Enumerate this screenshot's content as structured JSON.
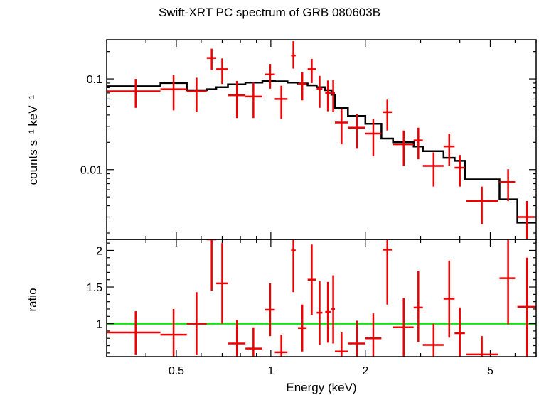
{
  "chart_data": [
    {
      "type": "scatter",
      "panel": "spectrum",
      "title": "Swift-XRT PC spectrum of GRB 080603B",
      "ylabel": "counts s⁻¹ keV⁻¹",
      "xscale": "log",
      "yscale": "log",
      "xlim": [
        0.3,
        7.0
      ],
      "ylim": [
        0.0017,
        0.27
      ],
      "yticks": [
        {
          "v": 0.1,
          "label": "0.1"
        },
        {
          "v": 0.01,
          "label": "0.01"
        }
      ],
      "data_color": "#ee0000",
      "model_color": "#000000",
      "data": [
        {
          "x": 0.371,
          "xlo": 0.3,
          "xhi": 0.445,
          "y": 0.073,
          "ylo": 0.048,
          "yhi": 0.1
        },
        {
          "x": 0.49,
          "xlo": 0.445,
          "xhi": 0.54,
          "y": 0.077,
          "ylo": 0.045,
          "yhi": 0.11
        },
        {
          "x": 0.58,
          "xlo": 0.54,
          "xhi": 0.625,
          "y": 0.073,
          "ylo": 0.043,
          "yhi": 0.103
        },
        {
          "x": 0.648,
          "xlo": 0.625,
          "xhi": 0.67,
          "y": 0.17,
          "ylo": 0.125,
          "yhi": 0.215
        },
        {
          "x": 0.7,
          "xlo": 0.67,
          "xhi": 0.73,
          "y": 0.128,
          "ylo": 0.088,
          "yhi": 0.168
        },
        {
          "x": 0.78,
          "xlo": 0.73,
          "xhi": 0.83,
          "y": 0.066,
          "ylo": 0.037,
          "yhi": 0.095
        },
        {
          "x": 0.88,
          "xlo": 0.83,
          "xhi": 0.94,
          "y": 0.064,
          "ylo": 0.037,
          "yhi": 0.091
        },
        {
          "x": 0.995,
          "xlo": 0.96,
          "xhi": 1.03,
          "y": 0.112,
          "ylo": 0.078,
          "yhi": 0.146
        },
        {
          "x": 1.08,
          "xlo": 1.03,
          "xhi": 1.13,
          "y": 0.06,
          "ylo": 0.036,
          "yhi": 0.084
        },
        {
          "x": 1.18,
          "xlo": 1.16,
          "xhi": 1.2,
          "y": 0.181,
          "ylo": 0.13,
          "yhi": 0.26
        },
        {
          "x": 1.26,
          "xlo": 1.22,
          "xhi": 1.3,
          "y": 0.088,
          "ylo": 0.058,
          "yhi": 0.118
        },
        {
          "x": 1.35,
          "xlo": 1.31,
          "xhi": 1.39,
          "y": 0.128,
          "ylo": 0.09,
          "yhi": 0.166
        },
        {
          "x": 1.43,
          "xlo": 1.4,
          "xhi": 1.46,
          "y": 0.078,
          "ylo": 0.048,
          "yhi": 0.108
        },
        {
          "x": 1.52,
          "xlo": 1.49,
          "xhi": 1.55,
          "y": 0.07,
          "ylo": 0.044,
          "yhi": 0.096
        },
        {
          "x": 1.58,
          "xlo": 1.56,
          "xhi": 1.6,
          "y": 0.07,
          "ylo": 0.043,
          "yhi": 0.097
        },
        {
          "x": 1.68,
          "xlo": 1.6,
          "xhi": 1.76,
          "y": 0.033,
          "ylo": 0.019,
          "yhi": 0.047
        },
        {
          "x": 1.88,
          "xlo": 1.76,
          "xhi": 2.0,
          "y": 0.029,
          "ylo": 0.017,
          "yhi": 0.041
        },
        {
          "x": 2.12,
          "xlo": 2.0,
          "xhi": 2.25,
          "y": 0.025,
          "ylo": 0.014,
          "yhi": 0.036
        },
        {
          "x": 2.35,
          "xlo": 2.27,
          "xhi": 2.43,
          "y": 0.043,
          "ylo": 0.027,
          "yhi": 0.059
        },
        {
          "x": 2.65,
          "xlo": 2.45,
          "xhi": 2.85,
          "y": 0.019,
          "ylo": 0.011,
          "yhi": 0.027
        },
        {
          "x": 2.95,
          "xlo": 2.85,
          "xhi": 3.05,
          "y": 0.021,
          "ylo": 0.013,
          "yhi": 0.029
        },
        {
          "x": 3.3,
          "xlo": 3.05,
          "xhi": 3.55,
          "y": 0.011,
          "ylo": 0.0065,
          "yhi": 0.0155
        },
        {
          "x": 3.7,
          "xlo": 3.55,
          "xhi": 3.85,
          "y": 0.018,
          "ylo": 0.011,
          "yhi": 0.025
        },
        {
          "x": 4.0,
          "xlo": 3.85,
          "xhi": 4.15,
          "y": 0.0105,
          "ylo": 0.0065,
          "yhi": 0.0145
        },
        {
          "x": 4.7,
          "xlo": 4.2,
          "xhi": 5.3,
          "y": 0.0045,
          "ylo": 0.0025,
          "yhi": 0.0065
        },
        {
          "x": 5.7,
          "xlo": 5.35,
          "xhi": 6.0,
          "y": 0.0073,
          "ylo": 0.0045,
          "yhi": 0.0101
        },
        {
          "x": 6.55,
          "xlo": 6.1,
          "xhi": 7.0,
          "y": 0.003,
          "ylo": 0.0017,
          "yhi": 0.0045
        }
      ],
      "model": [
        {
          "x0": 0.3,
          "x1": 0.445,
          "y": 0.083
        },
        {
          "x0": 0.445,
          "x1": 0.54,
          "y": 0.09
        },
        {
          "x0": 0.54,
          "x1": 0.625,
          "y": 0.075
        },
        {
          "x0": 0.625,
          "x1": 0.67,
          "y": 0.077
        },
        {
          "x0": 0.67,
          "x1": 0.73,
          "y": 0.081
        },
        {
          "x0": 0.73,
          "x1": 0.83,
          "y": 0.087
        },
        {
          "x0": 0.83,
          "x1": 0.94,
          "y": 0.091
        },
        {
          "x0": 0.94,
          "x1": 1.03,
          "y": 0.095
        },
        {
          "x0": 1.03,
          "x1": 1.13,
          "y": 0.094
        },
        {
          "x0": 1.13,
          "x1": 1.22,
          "y": 0.091
        },
        {
          "x0": 1.22,
          "x1": 1.31,
          "y": 0.089
        },
        {
          "x0": 1.31,
          "x1": 1.4,
          "y": 0.085
        },
        {
          "x0": 1.4,
          "x1": 1.49,
          "y": 0.081
        },
        {
          "x0": 1.49,
          "x1": 1.56,
          "y": 0.075
        },
        {
          "x0": 1.56,
          "x1": 1.6,
          "y": 0.067
        },
        {
          "x0": 1.6,
          "x1": 1.76,
          "y": 0.048
        },
        {
          "x0": 1.76,
          "x1": 2.0,
          "y": 0.039
        },
        {
          "x0": 2.0,
          "x1": 2.25,
          "y": 0.032
        },
        {
          "x0": 2.25,
          "x1": 2.45,
          "y": 0.022
        },
        {
          "x0": 2.45,
          "x1": 2.85,
          "y": 0.02
        },
        {
          "x0": 2.85,
          "x1": 3.05,
          "y": 0.018
        },
        {
          "x0": 3.05,
          "x1": 3.55,
          "y": 0.016
        },
        {
          "x0": 3.55,
          "x1": 3.85,
          "y": 0.0135
        },
        {
          "x0": 3.85,
          "x1": 4.15,
          "y": 0.0125
        },
        {
          "x0": 4.15,
          "x1": 5.35,
          "y": 0.0078
        },
        {
          "x0": 5.35,
          "x1": 6.1,
          "y": 0.0047
        },
        {
          "x0": 6.1,
          "x1": 7.0,
          "y": 0.0026
        }
      ]
    },
    {
      "type": "scatter",
      "panel": "ratio",
      "xlabel": "Energy (keV)",
      "ylabel": "ratio",
      "xscale": "log",
      "yscale": "linear",
      "xlim": [
        0.3,
        7.0
      ],
      "ylim": [
        0.55,
        2.15
      ],
      "xticks": [
        {
          "v": 0.5,
          "label": "0.5"
        },
        {
          "v": 1,
          "label": "1"
        },
        {
          "v": 2,
          "label": "2"
        },
        {
          "v": 5,
          "label": "5"
        }
      ],
      "yticks": [
        {
          "v": 1,
          "label": "1"
        },
        {
          "v": 1.5,
          "label": "1.5"
        },
        {
          "v": 2,
          "label": "2"
        }
      ],
      "reference_line": {
        "y": 1.0,
        "color": "#00ee00"
      },
      "data_color": "#ee0000",
      "data": [
        {
          "x": 0.371,
          "xlo": 0.3,
          "xhi": 0.445,
          "y": 0.88,
          "ylo": 0.58,
          "yhi": 1.17
        },
        {
          "x": 0.49,
          "xlo": 0.445,
          "xhi": 0.54,
          "y": 0.85,
          "ylo": 0.5,
          "yhi": 1.2
        },
        {
          "x": 0.58,
          "xlo": 0.54,
          "xhi": 0.625,
          "y": 1.0,
          "ylo": 0.57,
          "yhi": 1.43
        },
        {
          "x": 0.648,
          "xlo": 0.625,
          "xhi": 0.67,
          "y": 2.15,
          "ylo": 1.45,
          "yhi": 2.85
        },
        {
          "x": 0.7,
          "xlo": 0.67,
          "xhi": 0.73,
          "y": 1.55,
          "ylo": 1.0,
          "yhi": 2.1
        },
        {
          "x": 0.78,
          "xlo": 0.73,
          "xhi": 0.83,
          "y": 0.73,
          "ylo": 0.42,
          "yhi": 1.05
        },
        {
          "x": 0.88,
          "xlo": 0.83,
          "xhi": 0.94,
          "y": 0.66,
          "ylo": 0.38,
          "yhi": 0.95
        },
        {
          "x": 0.995,
          "xlo": 0.96,
          "xhi": 1.03,
          "y": 1.19,
          "ylo": 0.83,
          "yhi": 1.55
        },
        {
          "x": 1.08,
          "xlo": 1.03,
          "xhi": 1.13,
          "y": 0.61,
          "ylo": 0.37,
          "yhi": 0.85
        },
        {
          "x": 1.18,
          "xlo": 1.16,
          "xhi": 1.2,
          "y": 2.0,
          "ylo": 1.43,
          "yhi": 2.9
        },
        {
          "x": 1.26,
          "xlo": 1.22,
          "xhi": 1.3,
          "y": 0.94,
          "ylo": 0.62,
          "yhi": 1.26
        },
        {
          "x": 1.35,
          "xlo": 1.31,
          "xhi": 1.39,
          "y": 1.6,
          "ylo": 1.12,
          "yhi": 2.08
        },
        {
          "x": 1.43,
          "xlo": 1.4,
          "xhi": 1.46,
          "y": 1.15,
          "ylo": 0.71,
          "yhi": 1.58
        },
        {
          "x": 1.52,
          "xlo": 1.49,
          "xhi": 1.55,
          "y": 1.16,
          "ylo": 0.74,
          "yhi": 1.57
        },
        {
          "x": 1.58,
          "xlo": 1.56,
          "xhi": 1.6,
          "y": 1.2,
          "ylo": 0.73,
          "yhi": 1.66
        },
        {
          "x": 1.68,
          "xlo": 1.6,
          "xhi": 1.76,
          "y": 0.62,
          "ylo": 0.36,
          "yhi": 0.88
        },
        {
          "x": 1.88,
          "xlo": 1.76,
          "xhi": 2.0,
          "y": 0.73,
          "ylo": 0.43,
          "yhi": 1.04
        },
        {
          "x": 2.12,
          "xlo": 2.0,
          "xhi": 2.25,
          "y": 0.8,
          "ylo": 0.45,
          "yhi": 1.14
        },
        {
          "x": 2.35,
          "xlo": 2.27,
          "xhi": 2.43,
          "y": 2.01,
          "ylo": 1.26,
          "yhi": 2.75
        },
        {
          "x": 2.65,
          "xlo": 2.45,
          "xhi": 2.85,
          "y": 0.95,
          "ylo": 0.55,
          "yhi": 1.35
        },
        {
          "x": 2.95,
          "xlo": 2.85,
          "xhi": 3.05,
          "y": 1.22,
          "ylo": 0.75,
          "yhi": 1.72
        },
        {
          "x": 3.3,
          "xlo": 3.05,
          "xhi": 3.55,
          "y": 0.71,
          "ylo": 0.42,
          "yhi": 1.0
        },
        {
          "x": 3.7,
          "xlo": 3.55,
          "xhi": 3.85,
          "y": 1.34,
          "ylo": 0.81,
          "yhi": 1.86
        },
        {
          "x": 4.0,
          "xlo": 3.85,
          "xhi": 4.15,
          "y": 0.87,
          "ylo": 0.52,
          "yhi": 1.22
        },
        {
          "x": 4.7,
          "xlo": 4.2,
          "xhi": 5.3,
          "y": 0.58,
          "ylo": 0.32,
          "yhi": 0.83
        },
        {
          "x": 5.7,
          "xlo": 5.35,
          "xhi": 6.0,
          "y": 1.62,
          "ylo": 0.99,
          "yhi": 2.25
        },
        {
          "x": 6.55,
          "xlo": 6.1,
          "xhi": 7.0,
          "y": 1.23,
          "ylo": 0.55,
          "yhi": 1.9
        }
      ]
    }
  ]
}
